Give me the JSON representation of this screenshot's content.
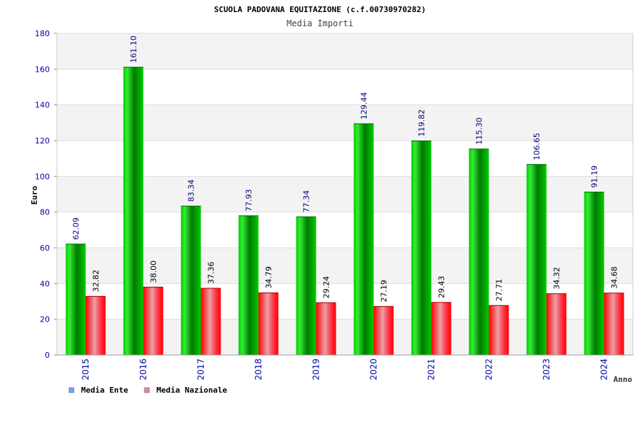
{
  "chart_data": {
    "type": "bar",
    "title": "SCUOLA PADOVANA EQUITAZIONE (c.f.00730970282)",
    "subtitle": "Media Importi",
    "ylabel": "Euro",
    "xlabel": "Anno",
    "ylim": [
      0,
      180
    ],
    "yticks": [
      0,
      20,
      40,
      60,
      80,
      100,
      120,
      140,
      160,
      180
    ],
    "grid": true,
    "legend_position": "bottom-left",
    "categories": [
      "2015",
      "2016",
      "2017",
      "2018",
      "2019",
      "2020",
      "2021",
      "2022",
      "2023",
      "2024"
    ],
    "series": [
      {
        "name": "Media Ente",
        "values": [
          62.09,
          161.1,
          83.34,
          77.93,
          77.34,
          129.44,
          119.82,
          115.3,
          106.65,
          91.19
        ],
        "labels": [
          "62.09",
          "161.10",
          "83.34",
          "77.93",
          "77.34",
          "129.44",
          "119.82",
          "115.30",
          "106.65",
          "91.19"
        ],
        "color": "#00aa00",
        "legend_color": "#66aaff"
      },
      {
        "name": "Media Nazionale",
        "values": [
          32.82,
          38.0,
          37.36,
          34.79,
          29.24,
          27.19,
          29.43,
          27.71,
          34.32,
          34.68
        ],
        "labels": [
          "32.82",
          "38.00",
          "37.36",
          "34.79",
          "29.24",
          "27.19",
          "29.43",
          "27.71",
          "34.32",
          "34.68"
        ],
        "color": "#ee0000",
        "legend_color": "#dd88bb"
      }
    ]
  }
}
